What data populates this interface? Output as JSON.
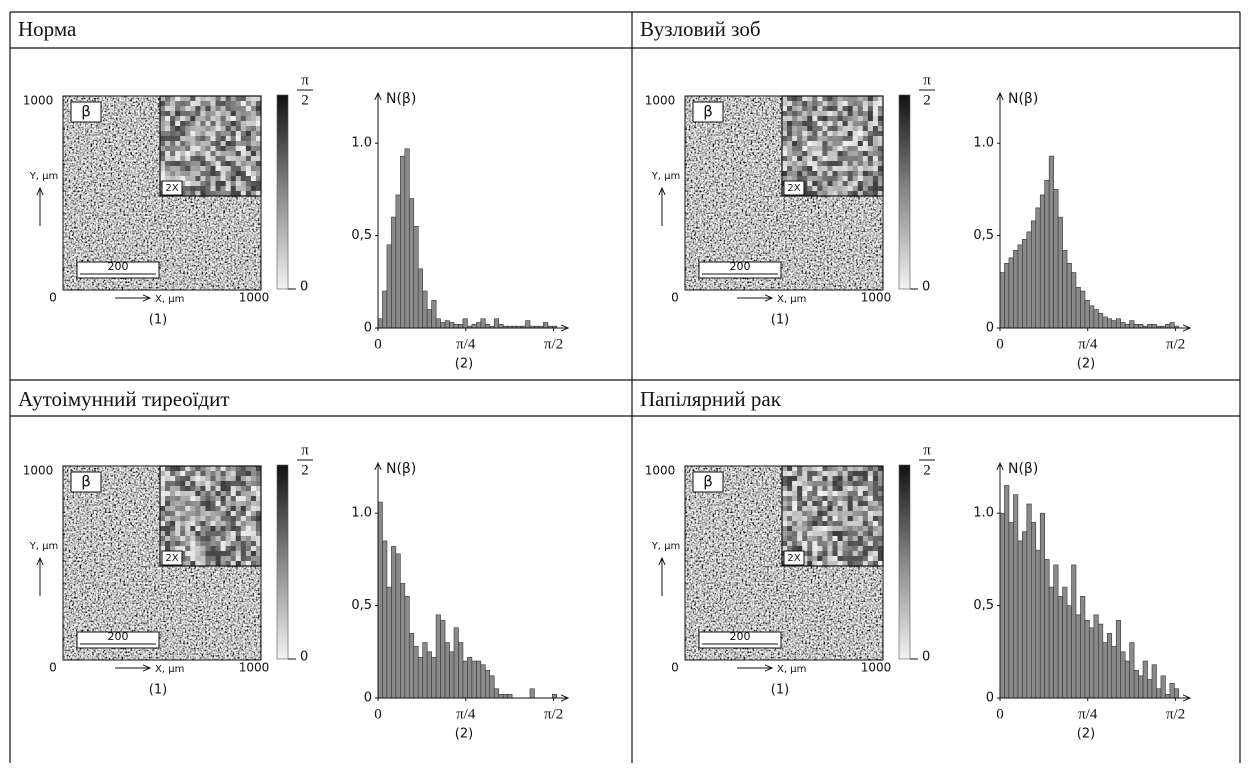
{
  "panels": [
    {
      "title": "Норма",
      "map": {
        "label": "β",
        "inset": "2X",
        "scale": "200",
        "y_top": "1000",
        "y_label": "Y, μm",
        "origin": "0",
        "x_label": "X, μm",
        "x_right": "1000",
        "caption": "(1)",
        "colorbar_top_num": "π",
        "colorbar_top_den": "2",
        "colorbar_bottom": "0"
      },
      "chart": {
        "type": "histogram",
        "y_label": "N(β)",
        "caption": "(2)",
        "color": "#8a8a8a",
        "bins": [
          0,
          0.04,
          0.08,
          0.12,
          0.16,
          0.2,
          0.24,
          0.28,
          0.32,
          0.36,
          0.4,
          0.44,
          0.48,
          0.52,
          0.56,
          0.6,
          0.64,
          0.68,
          0.72,
          0.76,
          0.8,
          0.84,
          0.88,
          0.92,
          0.96,
          1,
          1.04,
          1.08,
          1.12,
          1.16,
          1.2,
          1.24,
          1.28,
          1.32,
          1.36,
          1.4,
          1.44,
          1.48,
          1.52,
          1.56,
          1.6
        ],
        "values": [
          0.05,
          0.2,
          0.45,
          0.6,
          0.72,
          0.93,
          0.97,
          0.7,
          0.55,
          0.32,
          0.2,
          0.1,
          0.15,
          0.05,
          0.03,
          0.04,
          0.03,
          0.02,
          0.02,
          0.05,
          0.01,
          0.02,
          0.03,
          0.05,
          0.02,
          0.01,
          0.05,
          0.02,
          0.01,
          0.01,
          0.01,
          0.01,
          0.01,
          0.04,
          0.01,
          0.01,
          0.01,
          0.03,
          0.01,
          0.01
        ],
        "xlim": [
          0,
          1.7
        ],
        "xticks": [
          0,
          {
            "value": 0.785,
            "label": "π/4"
          },
          {
            "value": 1.571,
            "label": "π/2"
          }
        ],
        "ylim": [
          0,
          1.25
        ],
        "yticks": [
          0,
          {
            "value": 0.5,
            "label": "0,5"
          },
          {
            "value": 1,
            "label": "1.0"
          }
        ]
      }
    },
    {
      "title": "Вузловий зоб",
      "map": {
        "label": "β",
        "inset": "2X",
        "scale": "200",
        "y_top": "1000",
        "y_label": "Y, μm",
        "origin": "0",
        "x_label": "X, μm",
        "x_right": "1000",
        "caption": "(1)",
        "colorbar_top_num": "π",
        "colorbar_top_den": "2",
        "colorbar_bottom": "0"
      },
      "chart": {
        "type": "histogram",
        "y_label": "N(β)",
        "caption": "(2)",
        "color": "#8a8a8a",
        "bins": [
          0,
          0.04,
          0.08,
          0.12,
          0.16,
          0.2,
          0.24,
          0.28,
          0.32,
          0.36,
          0.4,
          0.44,
          0.48,
          0.52,
          0.56,
          0.6,
          0.64,
          0.68,
          0.72,
          0.76,
          0.8,
          0.84,
          0.88,
          0.92,
          0.96,
          1,
          1.04,
          1.08,
          1.12,
          1.16,
          1.2,
          1.24,
          1.28,
          1.32,
          1.36,
          1.4,
          1.44,
          1.48,
          1.52,
          1.56,
          1.6
        ],
        "values": [
          0.3,
          0.35,
          0.38,
          0.42,
          0.45,
          0.48,
          0.52,
          0.58,
          0.65,
          0.72,
          0.8,
          0.93,
          0.75,
          0.6,
          0.42,
          0.35,
          0.3,
          0.22,
          0.2,
          0.15,
          0.12,
          0.1,
          0.08,
          0.06,
          0.05,
          0.04,
          0.05,
          0.03,
          0.02,
          0.04,
          0.02,
          0.02,
          0.01,
          0.02,
          0.02,
          0.01,
          0.01,
          0.02,
          0.03,
          0.01
        ],
        "xlim": [
          0,
          1.7
        ],
        "xticks": [
          0,
          {
            "value": 0.785,
            "label": "π/4"
          },
          {
            "value": 1.571,
            "label": "π/2"
          }
        ],
        "ylim": [
          0,
          1.25
        ],
        "yticks": [
          0,
          {
            "value": 0.5,
            "label": "0,5"
          },
          {
            "value": 1,
            "label": "1.0"
          }
        ]
      }
    },
    {
      "title": "Аутоімунний тиреоїдит",
      "map": {
        "label": "β",
        "inset": "2X",
        "scale": "200",
        "y_top": "1000",
        "y_label": "Y, μm",
        "origin": "0",
        "x_label": "X, μm",
        "x_right": "1000",
        "caption": "(1)",
        "colorbar_top_num": "π",
        "colorbar_top_den": "2",
        "colorbar_bottom": "0"
      },
      "chart": {
        "type": "histogram",
        "y_label": "N(β)",
        "caption": "(2)",
        "color": "#8a8a8a",
        "bins": [
          0,
          0.04,
          0.08,
          0.12,
          0.16,
          0.2,
          0.24,
          0.28,
          0.32,
          0.36,
          0.4,
          0.44,
          0.48,
          0.52,
          0.56,
          0.6,
          0.64,
          0.68,
          0.72,
          0.76,
          0.8,
          0.84,
          0.88,
          0.92,
          0.96,
          1,
          1.04,
          1.08,
          1.12,
          1.16,
          1.2,
          1.24,
          1.28,
          1.32,
          1.36,
          1.4,
          1.44,
          1.48,
          1.52,
          1.56,
          1.6
        ],
        "values": [
          1.06,
          0.85,
          0.6,
          0.82,
          0.78,
          0.62,
          0.55,
          0.35,
          0.28,
          0.22,
          0.3,
          0.25,
          0.22,
          0.45,
          0.42,
          0.3,
          0.25,
          0.38,
          0.3,
          0.2,
          0.22,
          0.2,
          0.2,
          0.18,
          0.15,
          0.12,
          0.05,
          0.02,
          0.02,
          0.02,
          0,
          0,
          0,
          0,
          0.05,
          0,
          0,
          0,
          0,
          0.02
        ],
        "xlim": [
          0,
          1.7
        ],
        "xticks": [
          0,
          {
            "value": 0.785,
            "label": "π/4"
          },
          {
            "value": 1.571,
            "label": "π/2"
          }
        ],
        "ylim": [
          0,
          1.25
        ],
        "yticks": [
          0,
          {
            "value": 0.5,
            "label": "0,5"
          },
          {
            "value": 1,
            "label": "1.0"
          }
        ]
      }
    },
    {
      "title": "Папілярний рак",
      "map": {
        "label": "β",
        "inset": "2X",
        "scale": "200",
        "y_top": "1000",
        "y_label": "Y, μm",
        "origin": "0",
        "x_label": "X, μm",
        "x_right": "1000",
        "caption": "(1)",
        "colorbar_top_num": "π",
        "colorbar_top_den": "2",
        "colorbar_bottom": "0"
      },
      "chart": {
        "type": "histogram",
        "y_label": "N(β)",
        "caption": "(2)",
        "color": "#8a8a8a",
        "bins": [
          0,
          0.04,
          0.08,
          0.12,
          0.16,
          0.2,
          0.24,
          0.28,
          0.32,
          0.36,
          0.4,
          0.44,
          0.48,
          0.52,
          0.56,
          0.6,
          0.64,
          0.68,
          0.72,
          0.76,
          0.8,
          0.84,
          0.88,
          0.92,
          0.96,
          1,
          1.04,
          1.08,
          1.12,
          1.16,
          1.2,
          1.24,
          1.28,
          1.32,
          1.36,
          1.4,
          1.44,
          1.48,
          1.52,
          1.56,
          1.6
        ],
        "values": [
          1.0,
          1.15,
          0.95,
          1.1,
          0.85,
          0.9,
          1.05,
          0.95,
          0.8,
          1.0,
          0.75,
          0.6,
          0.72,
          0.55,
          0.6,
          0.5,
          0.72,
          0.45,
          0.55,
          0.42,
          0.38,
          0.45,
          0.4,
          0.3,
          0.35,
          0.28,
          0.42,
          0.25,
          0.2,
          0.3,
          0.15,
          0.12,
          0.2,
          0.1,
          0.18,
          0.05,
          0.12,
          0.02,
          0.08,
          0.05
        ],
        "xlim": [
          0,
          1.7
        ],
        "xticks": [
          0,
          {
            "value": 0.785,
            "label": "π/4"
          },
          {
            "value": 1.571,
            "label": "π/2"
          }
        ],
        "ylim": [
          0,
          1.25
        ],
        "yticks": [
          0,
          {
            "value": 0.5,
            "label": "0,5"
          },
          {
            "value": 1,
            "label": "1.0"
          }
        ]
      }
    }
  ]
}
